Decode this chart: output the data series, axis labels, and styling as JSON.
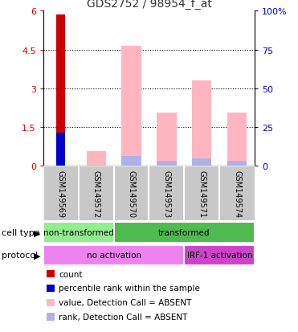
{
  "title": "GDS2752 / 98954_f_at",
  "samples": [
    "GSM149569",
    "GSM149572",
    "GSM149570",
    "GSM149573",
    "GSM149571",
    "GSM149574"
  ],
  "red_bar": [
    5.85,
    0,
    0,
    0,
    0,
    0
  ],
  "blue_bar": [
    1.27,
    0,
    0,
    0,
    0,
    0
  ],
  "pink_bar": [
    0,
    0.55,
    4.65,
    2.05,
    3.3,
    2.05
  ],
  "lavender_bar": [
    0,
    0,
    0.38,
    0.18,
    0.28,
    0.18
  ],
  "ylim_left": [
    0,
    6
  ],
  "ylim_right": [
    0,
    100
  ],
  "yticks_left": [
    0,
    1.5,
    3.0,
    4.5,
    6.0
  ],
  "yticks_right": [
    0,
    25,
    50,
    75,
    100
  ],
  "ytick_labels_left": [
    "0",
    "1.5",
    "3",
    "4.5",
    "6"
  ],
  "ytick_labels_right": [
    "0",
    "25",
    "50",
    "75",
    "100%"
  ],
  "cell_type_labels": [
    [
      "non-transformed",
      0,
      2
    ],
    [
      "transformed",
      2,
      6
    ]
  ],
  "protocol_labels": [
    [
      "no activation",
      0,
      4
    ],
    [
      "IRF-1 activation",
      4,
      6
    ]
  ],
  "cell_type_colors": [
    "#90ee90",
    "#4dbb4d"
  ],
  "protocol_colors": [
    "#ee82ee",
    "#cc44cc"
  ],
  "bar_width": 0.55,
  "color_red": "#cc0000",
  "color_blue": "#0000cc",
  "color_pink": "#ffb6c1",
  "color_lavender": "#b0b0e8",
  "label_red": "count",
  "label_blue": "percentile rank within the sample",
  "label_pink": "value, Detection Call = ABSENT",
  "label_lavender": "rank, Detection Call = ABSENT",
  "bg_color": "#ffffff",
  "title_color": "#333333"
}
